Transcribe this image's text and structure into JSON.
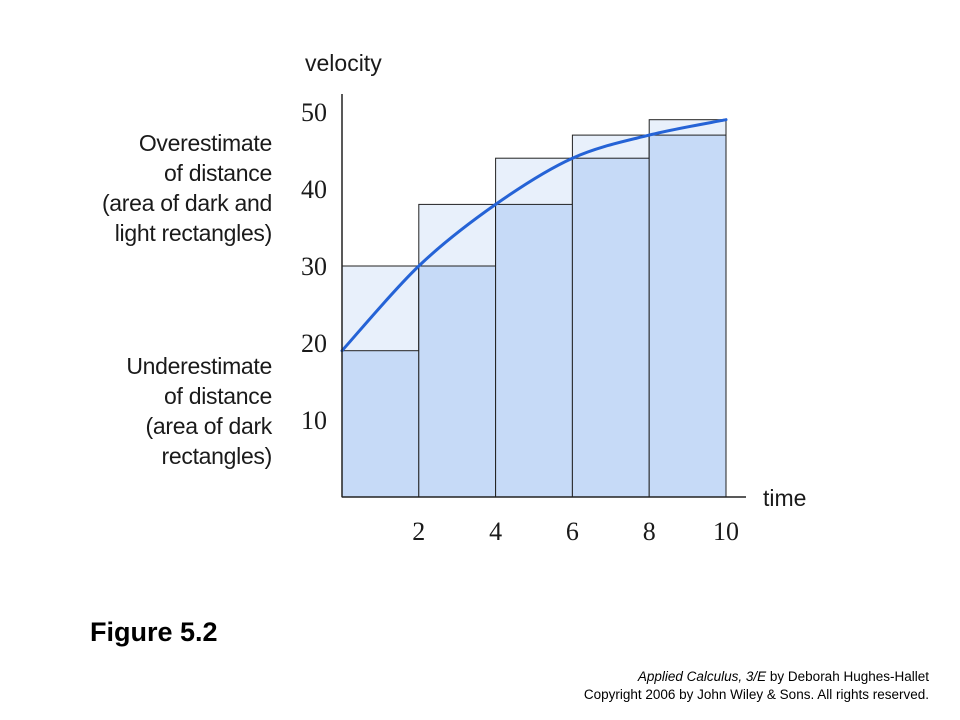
{
  "chart_data": {
    "type": "bar",
    "xlabel": "time",
    "ylabel": "velocity",
    "x_ticks": [
      2,
      4,
      6,
      8,
      10
    ],
    "y_ticks": [
      10,
      20,
      30,
      40,
      50
    ],
    "xlim": [
      0,
      10.5
    ],
    "ylim": [
      0,
      51
    ],
    "intervals": [
      [
        0,
        2
      ],
      [
        2,
        4
      ],
      [
        4,
        6
      ],
      [
        6,
        8
      ],
      [
        8,
        10
      ]
    ],
    "series": [
      {
        "name": "Overestimate",
        "values": [
          30,
          38,
          44,
          47,
          49
        ]
      },
      {
        "name": "Underestimate",
        "values": [
          19,
          30,
          38,
          44,
          47
        ]
      }
    ],
    "curve": {
      "x": [
        0,
        2,
        4,
        6,
        8,
        10
      ],
      "y": [
        19,
        30,
        38,
        44,
        47,
        49
      ]
    },
    "colors": {
      "light": "#e8f0fb",
      "dark": "#c6daf7",
      "curve": "#2563d6",
      "edge": "#222222"
    },
    "grid": false
  },
  "annotations": {
    "over": [
      "Overestimate",
      "of distance",
      "(area of dark and",
      "light rectangles)"
    ],
    "under": [
      "Underestimate",
      "of distance",
      "(area of dark",
      "rectangles)"
    ]
  },
  "figure_title": "Figure 5.2",
  "credit": {
    "book": "Applied Calculus, 3/E",
    "author": " by Deborah Hughes-Hallet",
    "copyright": "Copyright 2006 by John Wiley & Sons.  All rights reserved."
  }
}
